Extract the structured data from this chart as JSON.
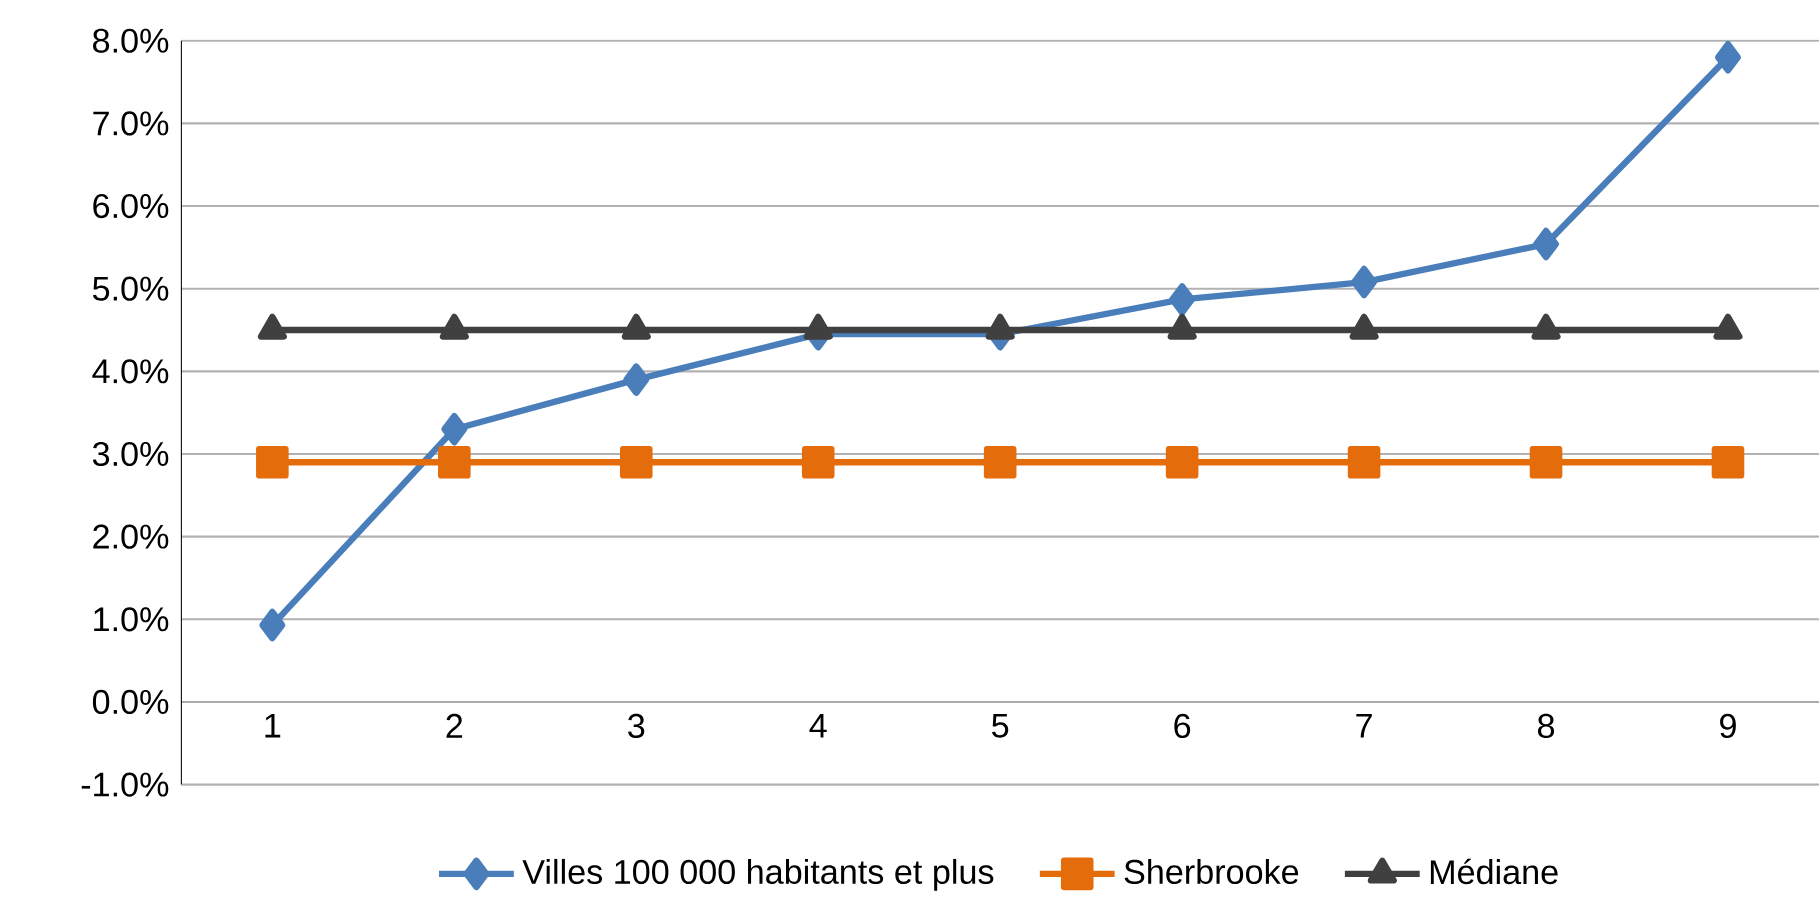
{
  "chart_data": {
    "type": "line",
    "categories": [
      "1",
      "2",
      "3",
      "4",
      "5",
      "6",
      "7",
      "8",
      "9"
    ],
    "series": [
      {
        "name": "Villes 100 000 habitants et plus",
        "color": "#4a7ebb",
        "marker": "diamond",
        "values": [
          0.93,
          3.3,
          3.9,
          4.45,
          4.45,
          4.87,
          5.08,
          5.54,
          7.8
        ]
      },
      {
        "name": "Sherbrooke",
        "color": "#e46c0a",
        "marker": "square",
        "values": [
          2.9,
          2.9,
          2.9,
          2.9,
          2.9,
          2.9,
          2.9,
          2.9,
          2.9
        ]
      },
      {
        "name": "Médiane",
        "color": "#404040",
        "marker": "triangle",
        "values": [
          4.5,
          4.5,
          4.5,
          4.5,
          4.5,
          4.5,
          4.5,
          4.5,
          4.5
        ]
      }
    ],
    "ylim": [
      -1,
      8
    ],
    "yticks": [
      {
        "value": -1,
        "label": "-1.0%"
      },
      {
        "value": 0,
        "label": "0.0%"
      },
      {
        "value": 1,
        "label": "1.0%"
      },
      {
        "value": 2,
        "label": "2.0%"
      },
      {
        "value": 3,
        "label": "3.0%"
      },
      {
        "value": 4,
        "label": "4.0%"
      },
      {
        "value": 5,
        "label": "5.0%"
      },
      {
        "value": 6,
        "label": "6.0%"
      },
      {
        "value": 7,
        "label": "7.0%"
      },
      {
        "value": 8,
        "label": "8.0%"
      }
    ],
    "grid": "y",
    "legend": "bottom",
    "line_style": "solid"
  }
}
